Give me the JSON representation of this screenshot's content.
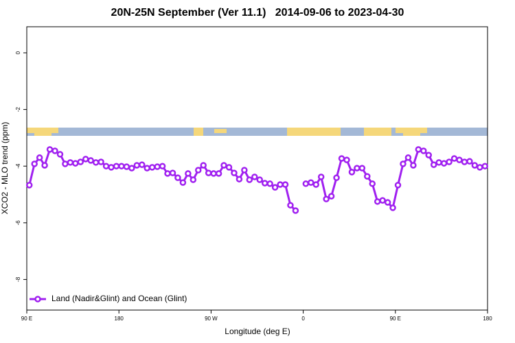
{
  "chart_data": {
    "type": "line",
    "title": "20N-25N September (Ver 11.1)   2014-09-06 to 2023-04-30",
    "xlabel": "Longitude (deg E)",
    "ylabel": "XCO2 - MLO trend (ppm)",
    "xlim": [
      90,
      540
    ],
    "ylim": [
      -9.08,
      0.92
    ],
    "xticks": [
      {
        "value": 90,
        "label": "90 E"
      },
      {
        "value": 180,
        "label": "180"
      },
      {
        "value": 270,
        "label": "90 W"
      },
      {
        "value": 360,
        "label": "0"
      },
      {
        "value": 450,
        "label": "90 E"
      },
      {
        "value": 540,
        "label": "180"
      }
    ],
    "yticks": [
      0,
      -2,
      -4,
      -6,
      -8
    ],
    "legend": "bottomleft",
    "x": [
      92.5,
      97.5,
      102.5,
      107.5,
      112.5,
      117.5,
      122.5,
      127.5,
      132.5,
      137.5,
      142.5,
      147.5,
      152.5,
      157.5,
      162.5,
      167.5,
      172.5,
      177.5,
      182.5,
      187.5,
      192.5,
      197.5,
      202.5,
      207.5,
      212.5,
      217.5,
      222.5,
      227.5,
      232.5,
      237.5,
      242.5,
      247.5,
      252.5,
      257.5,
      262.5,
      267.5,
      272.5,
      277.5,
      282.5,
      287.5,
      292.5,
      297.5,
      302.5,
      307.5,
      312.5,
      317.5,
      322.5,
      327.5,
      332.5,
      337.5,
      342.5,
      347.5,
      352.5,
      357.5,
      362.5,
      367.5,
      372.5,
      377.5,
      382.5,
      387.5,
      392.5,
      397.5,
      402.5,
      407.5,
      412.5,
      417.5,
      422.5,
      427.5,
      432.5,
      437.5,
      442.5,
      447.5,
      452.5,
      457.5,
      462.5,
      467.5,
      472.5,
      477.5,
      482.5,
      487.5,
      492.5,
      497.5,
      502.5,
      507.5,
      512.5,
      517.5,
      522.5,
      527.5,
      532.5,
      537.5
    ],
    "series": [
      {
        "name": "Land (Nadir&Glint) and Ocean (Glint)",
        "color": "#a020f0",
        "values": [
          -4.67,
          -3.92,
          -3.7,
          -3.97,
          -3.41,
          -3.46,
          -3.58,
          -3.92,
          -3.87,
          -3.9,
          -3.85,
          -3.75,
          -3.8,
          -3.87,
          -3.85,
          -4.0,
          -4.04,
          -4.0,
          -4.0,
          -4.02,
          -4.07,
          -3.97,
          -3.95,
          -4.07,
          -4.04,
          -4.02,
          -4.0,
          -4.26,
          -4.24,
          -4.41,
          -4.58,
          -4.26,
          -4.48,
          -4.14,
          -3.97,
          -4.24,
          -4.26,
          -4.26,
          -3.97,
          -4.04,
          -4.24,
          -4.46,
          -4.14,
          -4.48,
          -4.38,
          -4.48,
          -4.6,
          -4.62,
          -4.75,
          -4.65,
          -4.65,
          -5.38,
          -5.57,
          null,
          -4.62,
          -4.58,
          -4.65,
          -4.38,
          -5.16,
          -5.06,
          -4.41,
          -3.73,
          -3.78,
          -4.21,
          -4.07,
          -4.07,
          -4.36,
          -4.62,
          -5.25,
          -5.21,
          -5.28,
          -5.47,
          -4.67,
          -3.92,
          -3.7,
          -3.97,
          -3.41,
          -3.46,
          -3.61,
          -3.95,
          -3.87,
          -3.9,
          -3.85,
          -3.73,
          -3.78,
          -3.85,
          -3.83,
          -3.97,
          -4.04,
          -4.0
        ]
      }
    ]
  }
}
